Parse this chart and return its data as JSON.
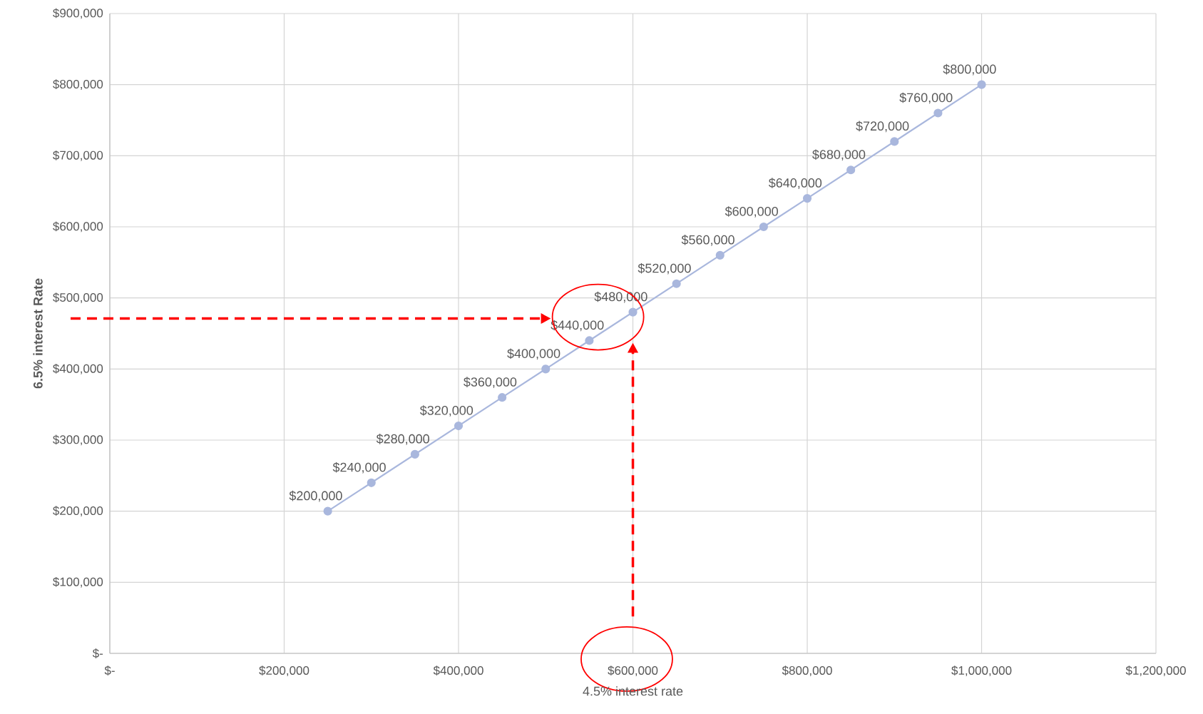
{
  "chart_data": {
    "type": "line",
    "xlabel": "4.5% interest rate",
    "ylabel": "6.5% interest Rate",
    "x": [
      250000,
      300000,
      350000,
      400000,
      450000,
      500000,
      550000,
      600000,
      650000,
      700000,
      750000,
      800000,
      850000,
      900000,
      950000,
      1000000
    ],
    "values": [
      200000,
      240000,
      280000,
      320000,
      360000,
      400000,
      440000,
      480000,
      520000,
      560000,
      600000,
      640000,
      680000,
      720000,
      760000,
      800000
    ],
    "value_labels": [
      "$200,000",
      "$240,000",
      "$280,000",
      "$320,000",
      "$360,000",
      "$400,000",
      "$440,000",
      "$480,000",
      "$520,000",
      "$560,000",
      "$600,000",
      "$640,000",
      "$680,000",
      "$720,000",
      "$760,000",
      "$800,000"
    ],
    "color": "#a9b7dd",
    "marker": "circle",
    "grid": true,
    "xlim": [
      0,
      1200000
    ],
    "xticks": [
      {
        "value": 0,
        "label": "$-"
      },
      {
        "value": 200000,
        "label": "$200,000"
      },
      {
        "value": 400000,
        "label": "$400,000"
      },
      {
        "value": 600000,
        "label": "$600,000"
      },
      {
        "value": 800000,
        "label": "$800,000"
      },
      {
        "value": 1000000,
        "label": "$1,000,000"
      },
      {
        "value": 1200000,
        "label": "$1,200,000"
      }
    ],
    "ylim": [
      0,
      900000
    ],
    "yticks": [
      {
        "value": 0,
        "label": "$-"
      },
      {
        "value": 100000,
        "label": "$100,000"
      },
      {
        "value": 200000,
        "label": "$200,000"
      },
      {
        "value": 300000,
        "label": "$300,000"
      },
      {
        "value": 400000,
        "label": "$400,000"
      },
      {
        "value": 500000,
        "label": "$500,000"
      },
      {
        "value": 600000,
        "label": "$600,000"
      },
      {
        "value": 700000,
        "label": "$700,000"
      },
      {
        "value": 800000,
        "label": "$800,000"
      },
      {
        "value": 900000,
        "label": "$900,000"
      }
    ]
  }
}
